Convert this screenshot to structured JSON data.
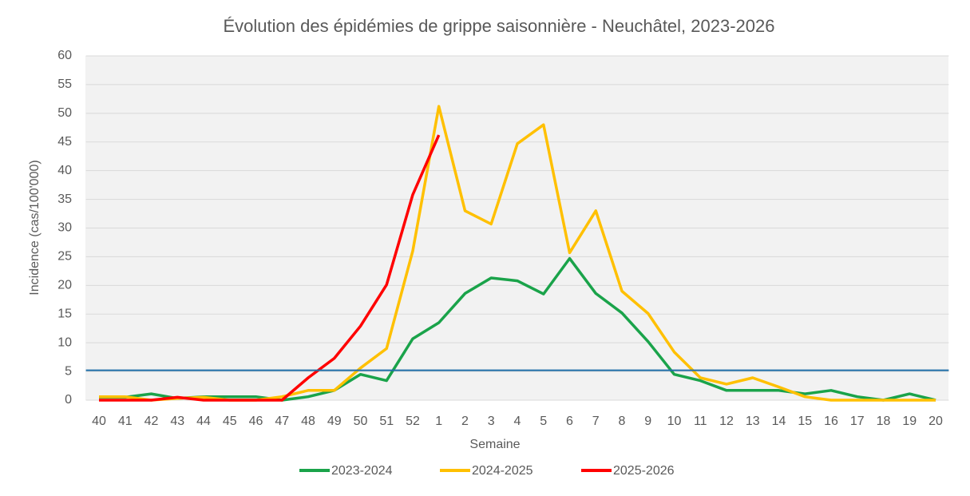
{
  "chart_data": {
    "type": "line",
    "title": "Évolution des épidémies de grippe saisonnière - Neuchâtel, 2023-2026",
    "xlabel": "Semaine",
    "ylabel": "Incidence (cas/100'000)",
    "categories": [
      "40",
      "41",
      "42",
      "43",
      "44",
      "45",
      "46",
      "47",
      "48",
      "49",
      "50",
      "51",
      "52",
      "1",
      "2",
      "3",
      "4",
      "5",
      "6",
      "7",
      "8",
      "9",
      "10",
      "11",
      "12",
      "13",
      "14",
      "15",
      "16",
      "17",
      "18",
      "19",
      "20"
    ],
    "series": [
      {
        "name": "2023-2024",
        "color": "#1aa34a",
        "values": [
          0.5,
          0.5,
          1.1,
          0.3,
          0.6,
          0.6,
          0.6,
          0,
          0.6,
          1.7,
          4.5,
          3.4,
          10.7,
          13.5,
          18.6,
          21.3,
          20.8,
          18.5,
          24.7,
          18.6,
          15.2,
          10.2,
          4.5,
          3.4,
          1.7,
          1.7,
          1.7,
          1.1,
          1.7,
          0.6,
          0,
          1.1,
          0
        ]
      },
      {
        "name": "2024-2025",
        "color": "#ffc000",
        "values": [
          0.6,
          0.6,
          0,
          0.3,
          0.5,
          0,
          0,
          0.6,
          1.7,
          1.7,
          5.6,
          9,
          26,
          51.2,
          33,
          30.7,
          44.7,
          48,
          25.7,
          33,
          19,
          15.1,
          8.4,
          3.9,
          2.8,
          3.9,
          2.3,
          0.6,
          0,
          0,
          0,
          0,
          0
        ]
      },
      {
        "name": "2025-2026",
        "color": "#ff0000",
        "values": [
          0,
          0,
          0,
          0.5,
          0,
          0,
          0,
          0,
          3.9,
          7.3,
          12.9,
          20.1,
          35.8,
          46.2,
          null,
          null,
          null,
          null,
          null,
          null,
          null,
          null,
          null,
          null,
          null,
          null,
          null,
          null,
          null,
          null,
          null,
          null,
          null
        ]
      }
    ],
    "threshold": 5.2,
    "threshold_color": "#1f6ea8",
    "ylim": [
      0,
      60
    ],
    "yticks": [
      0,
      5,
      10,
      15,
      20,
      25,
      30,
      35,
      40,
      45,
      50,
      55,
      60
    ],
    "grid": true,
    "legend": "bottom"
  }
}
